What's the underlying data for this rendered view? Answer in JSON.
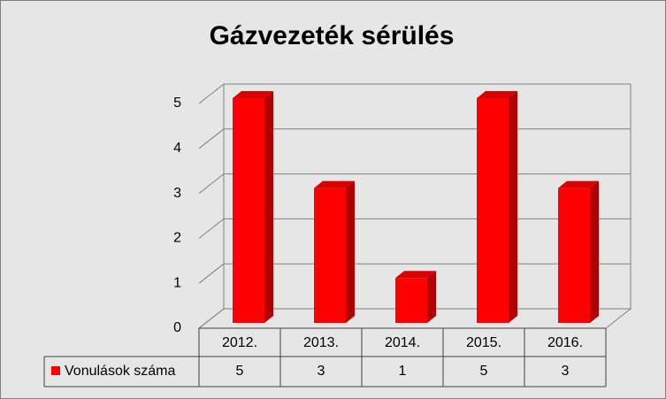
{
  "chart_data": {
    "type": "bar3d",
    "title": "Gázvezeték sérülés",
    "categories": [
      "2012.",
      "2013.",
      "2014.",
      "2015.",
      "2016."
    ],
    "series": [
      {
        "name": "Vonulások száma",
        "color": "#ff0000",
        "values": [
          5,
          3,
          1,
          5,
          3
        ]
      }
    ],
    "ylim": [
      0,
      5
    ],
    "yticks": [
      0,
      1,
      2,
      3,
      4,
      5
    ],
    "grid": true
  }
}
